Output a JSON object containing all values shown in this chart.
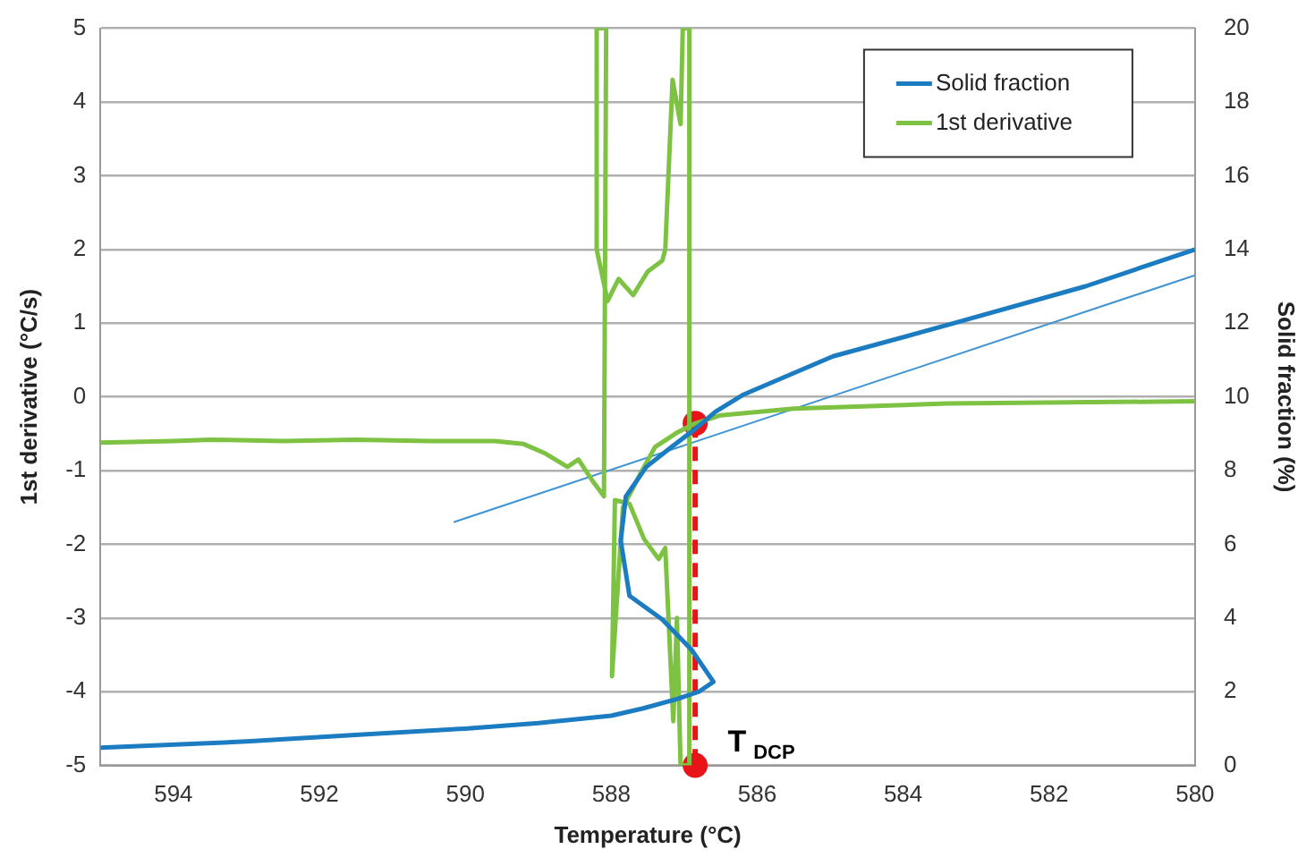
{
  "chart_data": {
    "type": "line",
    "xlabel": "Temperature (°C)",
    "ylabel": "1st derivative (°C/s)",
    "y2label": "Solid fraction (%)",
    "xlim": [
      595,
      580
    ],
    "xticks": [
      594,
      592,
      590,
      588,
      586,
      584,
      582,
      580
    ],
    "ylim": [
      -5,
      5
    ],
    "yticks": [
      -5,
      -4,
      -3,
      -2,
      -1,
      0,
      1,
      2,
      3,
      4,
      5
    ],
    "y2lim": [
      0,
      20
    ],
    "y2ticks": [
      0,
      2,
      4,
      6,
      8,
      10,
      12,
      14,
      16,
      18,
      20
    ],
    "grid": "y",
    "legend": "top right",
    "marker": "none",
    "line_style": "solid",
    "series": [
      {
        "name": "Solid fraction",
        "color": "#1b7cc1",
        "axis": "y2",
        "x": [
          595,
          593,
          591.3,
          590,
          589,
          588,
          587.56,
          587.1,
          586.8,
          586.6,
          586.9,
          587.3,
          587.75,
          587.87,
          587.8,
          587.52,
          587.2,
          586.85,
          586.57,
          586.2,
          585.67,
          584.96,
          583.3,
          581.5,
          580
        ],
        "values": [
          0.48,
          0.65,
          0.85,
          1.0,
          1.15,
          1.35,
          1.55,
          1.8,
          2.0,
          2.27,
          3.14,
          3.96,
          4.6,
          6.1,
          7.3,
          8.1,
          8.6,
          9.13,
          9.6,
          10.05,
          10.5,
          11.1,
          12.0,
          13.0,
          14.0
        ]
      },
      {
        "name": "1st derivative",
        "color": "#7dc243",
        "x": [
          595,
          594,
          593.5,
          592.5,
          591.5,
          590.5,
          589.6,
          589.2,
          588.9,
          588.6,
          588.45,
          588.25,
          588.1,
          588.07,
          588.2,
          588.2,
          588.05,
          587.9,
          587.7,
          587.5,
          587.3,
          587.26,
          587.16,
          587.05,
          587.02,
          586.93,
          586.93,
          587.05,
          587.1,
          587.15,
          587.26,
          587.35,
          587.55,
          587.75,
          587.95,
          587.99,
          587.84,
          587.6,
          587.4,
          587.09,
          586.85,
          586.5,
          585.5,
          583.4,
          580
        ],
        "values": [
          -0.62,
          -0.6,
          -0.58,
          -0.6,
          -0.58,
          -0.6,
          -0.6,
          -0.64,
          -0.77,
          -0.95,
          -0.85,
          -1.15,
          -1.35,
          5,
          5,
          2.0,
          1.3,
          1.6,
          1.38,
          1.7,
          1.85,
          2.0,
          4.3,
          3.7,
          5,
          5,
          -5,
          -5,
          -3.0,
          -4.4,
          -2.05,
          -2.2,
          -1.93,
          -1.45,
          -1.4,
          -3.79,
          -1.5,
          -1.04,
          -0.68,
          -0.48,
          -0.36,
          -0.25,
          -0.16,
          -0.09,
          -0.06
        ]
      },
      {
        "color": "#3f93d3",
        "axis": "y2",
        "x": [
          590.16,
          580
        ],
        "values": [
          6.6,
          13.3
        ]
      },
      {
        "color": "#e8141a",
        "x": [
          586.85,
          586.85
        ],
        "values": [
          -0.36,
          -5
        ],
        "marker": "circle",
        "line_style": "dashed"
      }
    ],
    "annotations": [
      "T$_{DCP}$"
    ]
  }
}
